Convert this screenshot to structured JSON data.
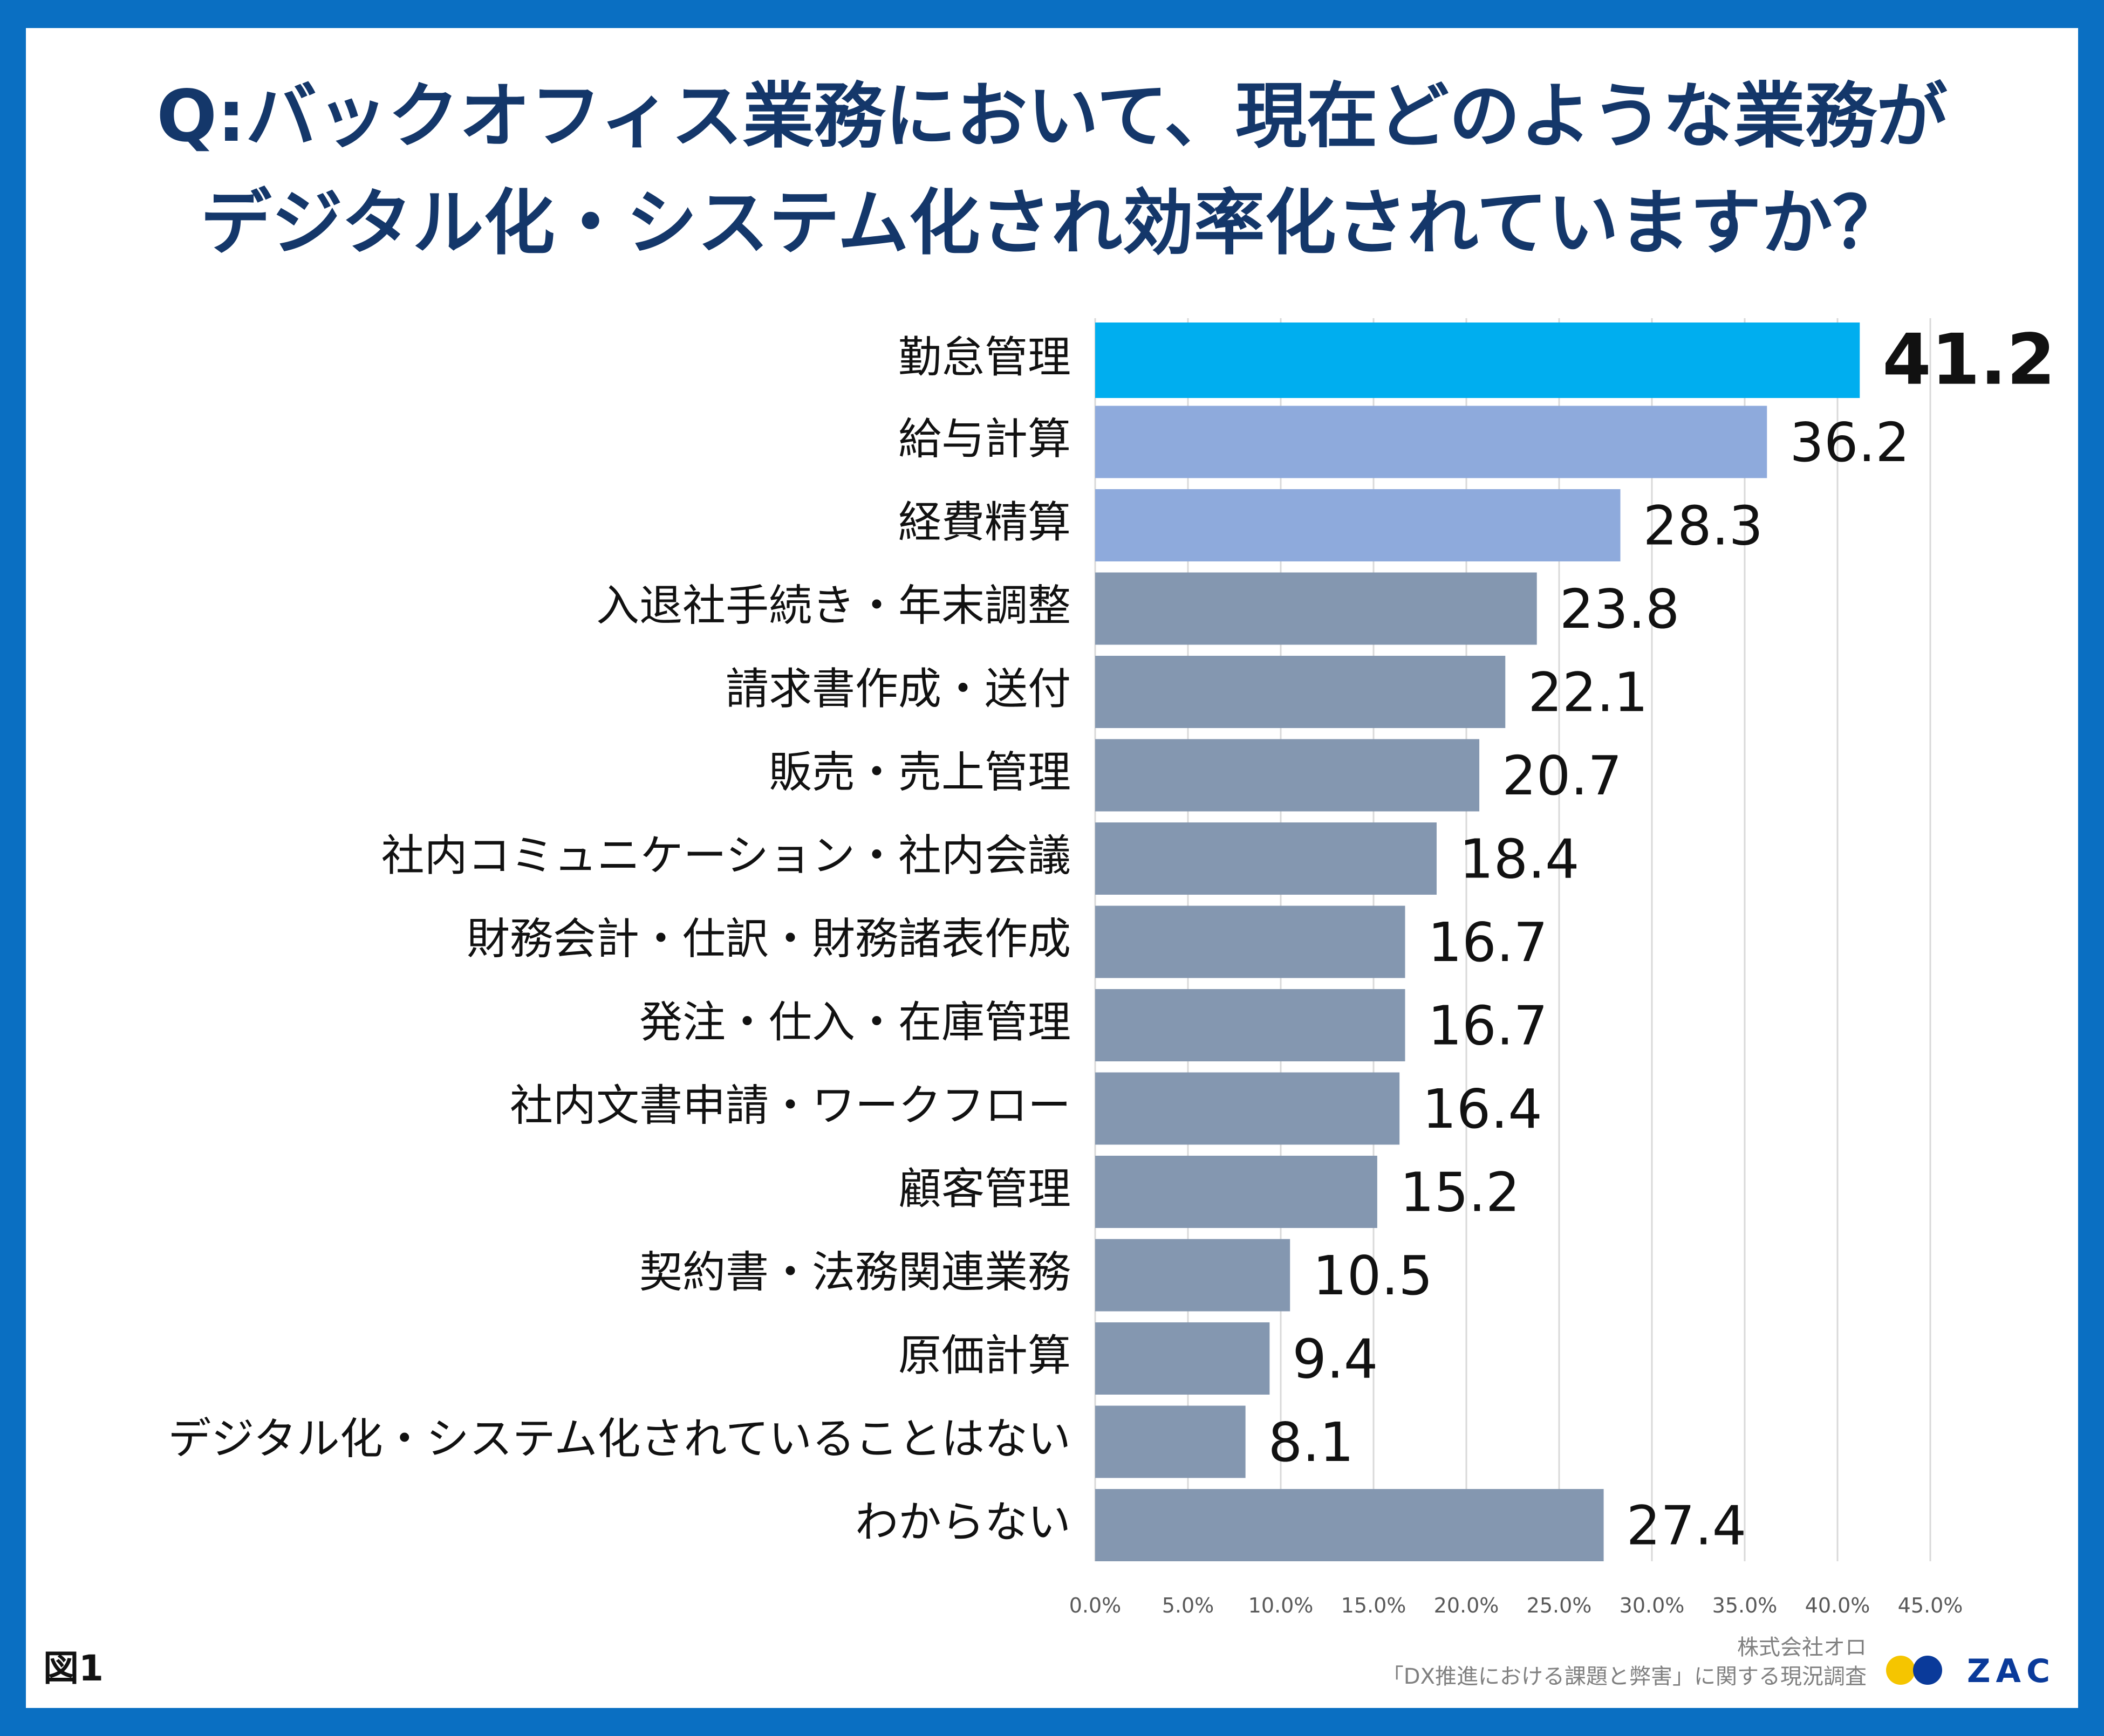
{
  "title": {
    "line1": "Q:バックオフィス業務において、現在どのような業務が",
    "line2": "デジタル化・システム化され効率化されていますか？"
  },
  "figure_label": "図1",
  "source": {
    "company": "株式会社オロ",
    "survey": "「DX推進における課題と弊害」に関する現況調査"
  },
  "logo": {
    "text": "ZAC"
  },
  "colors": {
    "highlight": "#00aeef",
    "secondary": "#8eaadc",
    "default": "#8497b0",
    "grid": "#d9d9d9",
    "label": "#111111"
  },
  "chart_data": {
    "type": "bar",
    "orientation": "horizontal",
    "categories": [
      "勤怠管理",
      "給与計算",
      "経費精算",
      "入退社手続き・年末調整",
      "請求書作成・送付",
      "販売・売上管理",
      "社内コミュニケーション・社内会議",
      "財務会計・仕訳・財務諸表作成",
      "発注・仕入・在庫管理",
      "社内文書申請・ワークフロー",
      "顧客管理",
      "契約書・法務関連業務",
      "原価計算",
      "デジタル化・システム化されていることはない",
      "わからない"
    ],
    "values": [
      41.2,
      36.2,
      28.3,
      23.8,
      22.1,
      20.7,
      18.4,
      16.7,
      16.7,
      16.4,
      15.2,
      10.5,
      9.4,
      8.1,
      27.4
    ],
    "value_labels": [
      "41.2",
      "36.2",
      "28.3",
      "23.8",
      "22.1",
      "20.7",
      "18.4",
      "16.7",
      "16.7",
      "16.4",
      "15.2",
      "10.5",
      "9.4",
      "8.1",
      "27.4"
    ],
    "color_groups": [
      "highlight",
      "secondary",
      "secondary",
      "default",
      "default",
      "default",
      "default",
      "default",
      "default",
      "default",
      "default",
      "default",
      "default",
      "default",
      "default"
    ],
    "xlim": [
      0,
      45
    ],
    "xticks": [
      0,
      5,
      10,
      15,
      20,
      25,
      30,
      35,
      40,
      45
    ],
    "xtick_labels": [
      "0.0%",
      "5.0%",
      "10.0%",
      "15.0%",
      "20.0%",
      "25.0%",
      "30.0%",
      "35.0%",
      "40.0%",
      "45.0%"
    ],
    "grid": true,
    "legend": "none",
    "xlabel": "",
    "ylabel": ""
  }
}
